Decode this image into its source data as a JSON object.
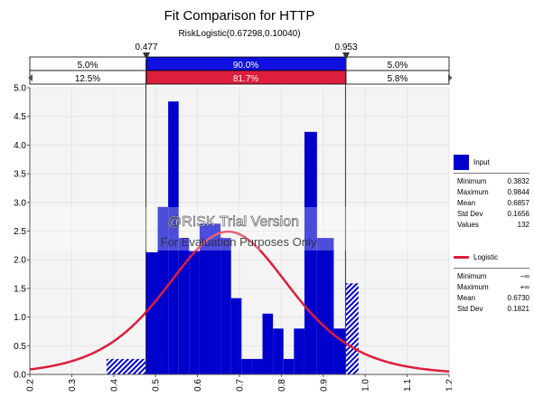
{
  "title": "Fit Comparison for HTTP",
  "subtitle": "RiskLogistic(0.67298,0.10040)",
  "watermark": {
    "line1": "@RISK Trial Version",
    "line2": "For Evaluation Purposes Only"
  },
  "colors": {
    "input": "#0000cc",
    "fit": "#dd1e3c",
    "band": "#1010e0",
    "grid": "#e4e4e4",
    "plot_bg": "#f4f4f4"
  },
  "delimiters": {
    "left_label": "0.477",
    "right_label": "0.953",
    "input_row": {
      "left": "5.0%",
      "middle": "90.0%",
      "right": "5.0%"
    },
    "fit_row": {
      "left": "12.5%",
      "middle": "81.7%",
      "right": "5.8%"
    }
  },
  "legend": {
    "input": {
      "name": "Input",
      "stats": [
        {
          "label": "Minimum",
          "value": "0.3832"
        },
        {
          "label": "Maximum",
          "value": "0.9844"
        },
        {
          "label": "Mean",
          "value": "0.6857"
        },
        {
          "label": "Std Dev",
          "value": "0.1656"
        },
        {
          "label": "Values",
          "value": "132"
        }
      ]
    },
    "fit": {
      "name": "Logistic",
      "stats": [
        {
          "label": "Minimum",
          "value": "−∞"
        },
        {
          "label": "Maximum",
          "value": "+∞"
        },
        {
          "label": "Mean",
          "value": "0.6730"
        },
        {
          "label": "Std Dev",
          "value": "0.1821"
        }
      ]
    }
  },
  "chart_data": {
    "type": "bar",
    "xlim": [
      0.2,
      1.2
    ],
    "ylim": [
      0,
      5.0
    ],
    "x_ticks": [
      "0.2",
      "0.3",
      "0.4",
      "0.5",
      "0.6",
      "0.7",
      "0.8",
      "0.9",
      "1.0",
      "1.1",
      "1.2"
    ],
    "y_ticks": [
      "0.0",
      "0.5",
      "1.0",
      "1.5",
      "2.0",
      "2.5",
      "3.0",
      "3.5",
      "4.0",
      "4.5",
      "5.0"
    ],
    "grid": true,
    "delimiter_lines": [
      0.477,
      0.953
    ],
    "histogram_bins": [
      {
        "x0": 0.383,
        "x1": 0.477,
        "density": 0.27
      },
      {
        "x0": 0.477,
        "x1": 0.505,
        "density": 2.13
      },
      {
        "x0": 0.505,
        "x1": 0.53,
        "density": 2.92
      },
      {
        "x0": 0.53,
        "x1": 0.555,
        "density": 4.76
      },
      {
        "x0": 0.555,
        "x1": 0.58,
        "density": 2.38
      },
      {
        "x0": 0.58,
        "x1": 0.605,
        "density": 2.15
      },
      {
        "x0": 0.605,
        "x1": 0.63,
        "density": 2.63
      },
      {
        "x0": 0.63,
        "x1": 0.655,
        "density": 2.63
      },
      {
        "x0": 0.655,
        "x1": 0.68,
        "density": 2.38
      },
      {
        "x0": 0.68,
        "x1": 0.705,
        "density": 1.33
      },
      {
        "x0": 0.705,
        "x1": 0.73,
        "density": 0.27
      },
      {
        "x0": 0.73,
        "x1": 0.755,
        "density": 0.27
      },
      {
        "x0": 0.755,
        "x1": 0.78,
        "density": 1.06
      },
      {
        "x0": 0.78,
        "x1": 0.805,
        "density": 0.8
      },
      {
        "x0": 0.805,
        "x1": 0.83,
        "density": 0.27
      },
      {
        "x0": 0.83,
        "x1": 0.855,
        "density": 0.8
      },
      {
        "x0": 0.855,
        "x1": 0.885,
        "density": 4.23
      },
      {
        "x0": 0.885,
        "x1": 0.925,
        "density": 2.38
      },
      {
        "x0": 0.925,
        "x1": 0.953,
        "density": 0.8
      },
      {
        "x0": 0.953,
        "x1": 0.984,
        "density": 1.59
      }
    ],
    "fit_curve": {
      "distribution": "Logistic",
      "mu": 0.67298,
      "s": 0.1004
    }
  }
}
